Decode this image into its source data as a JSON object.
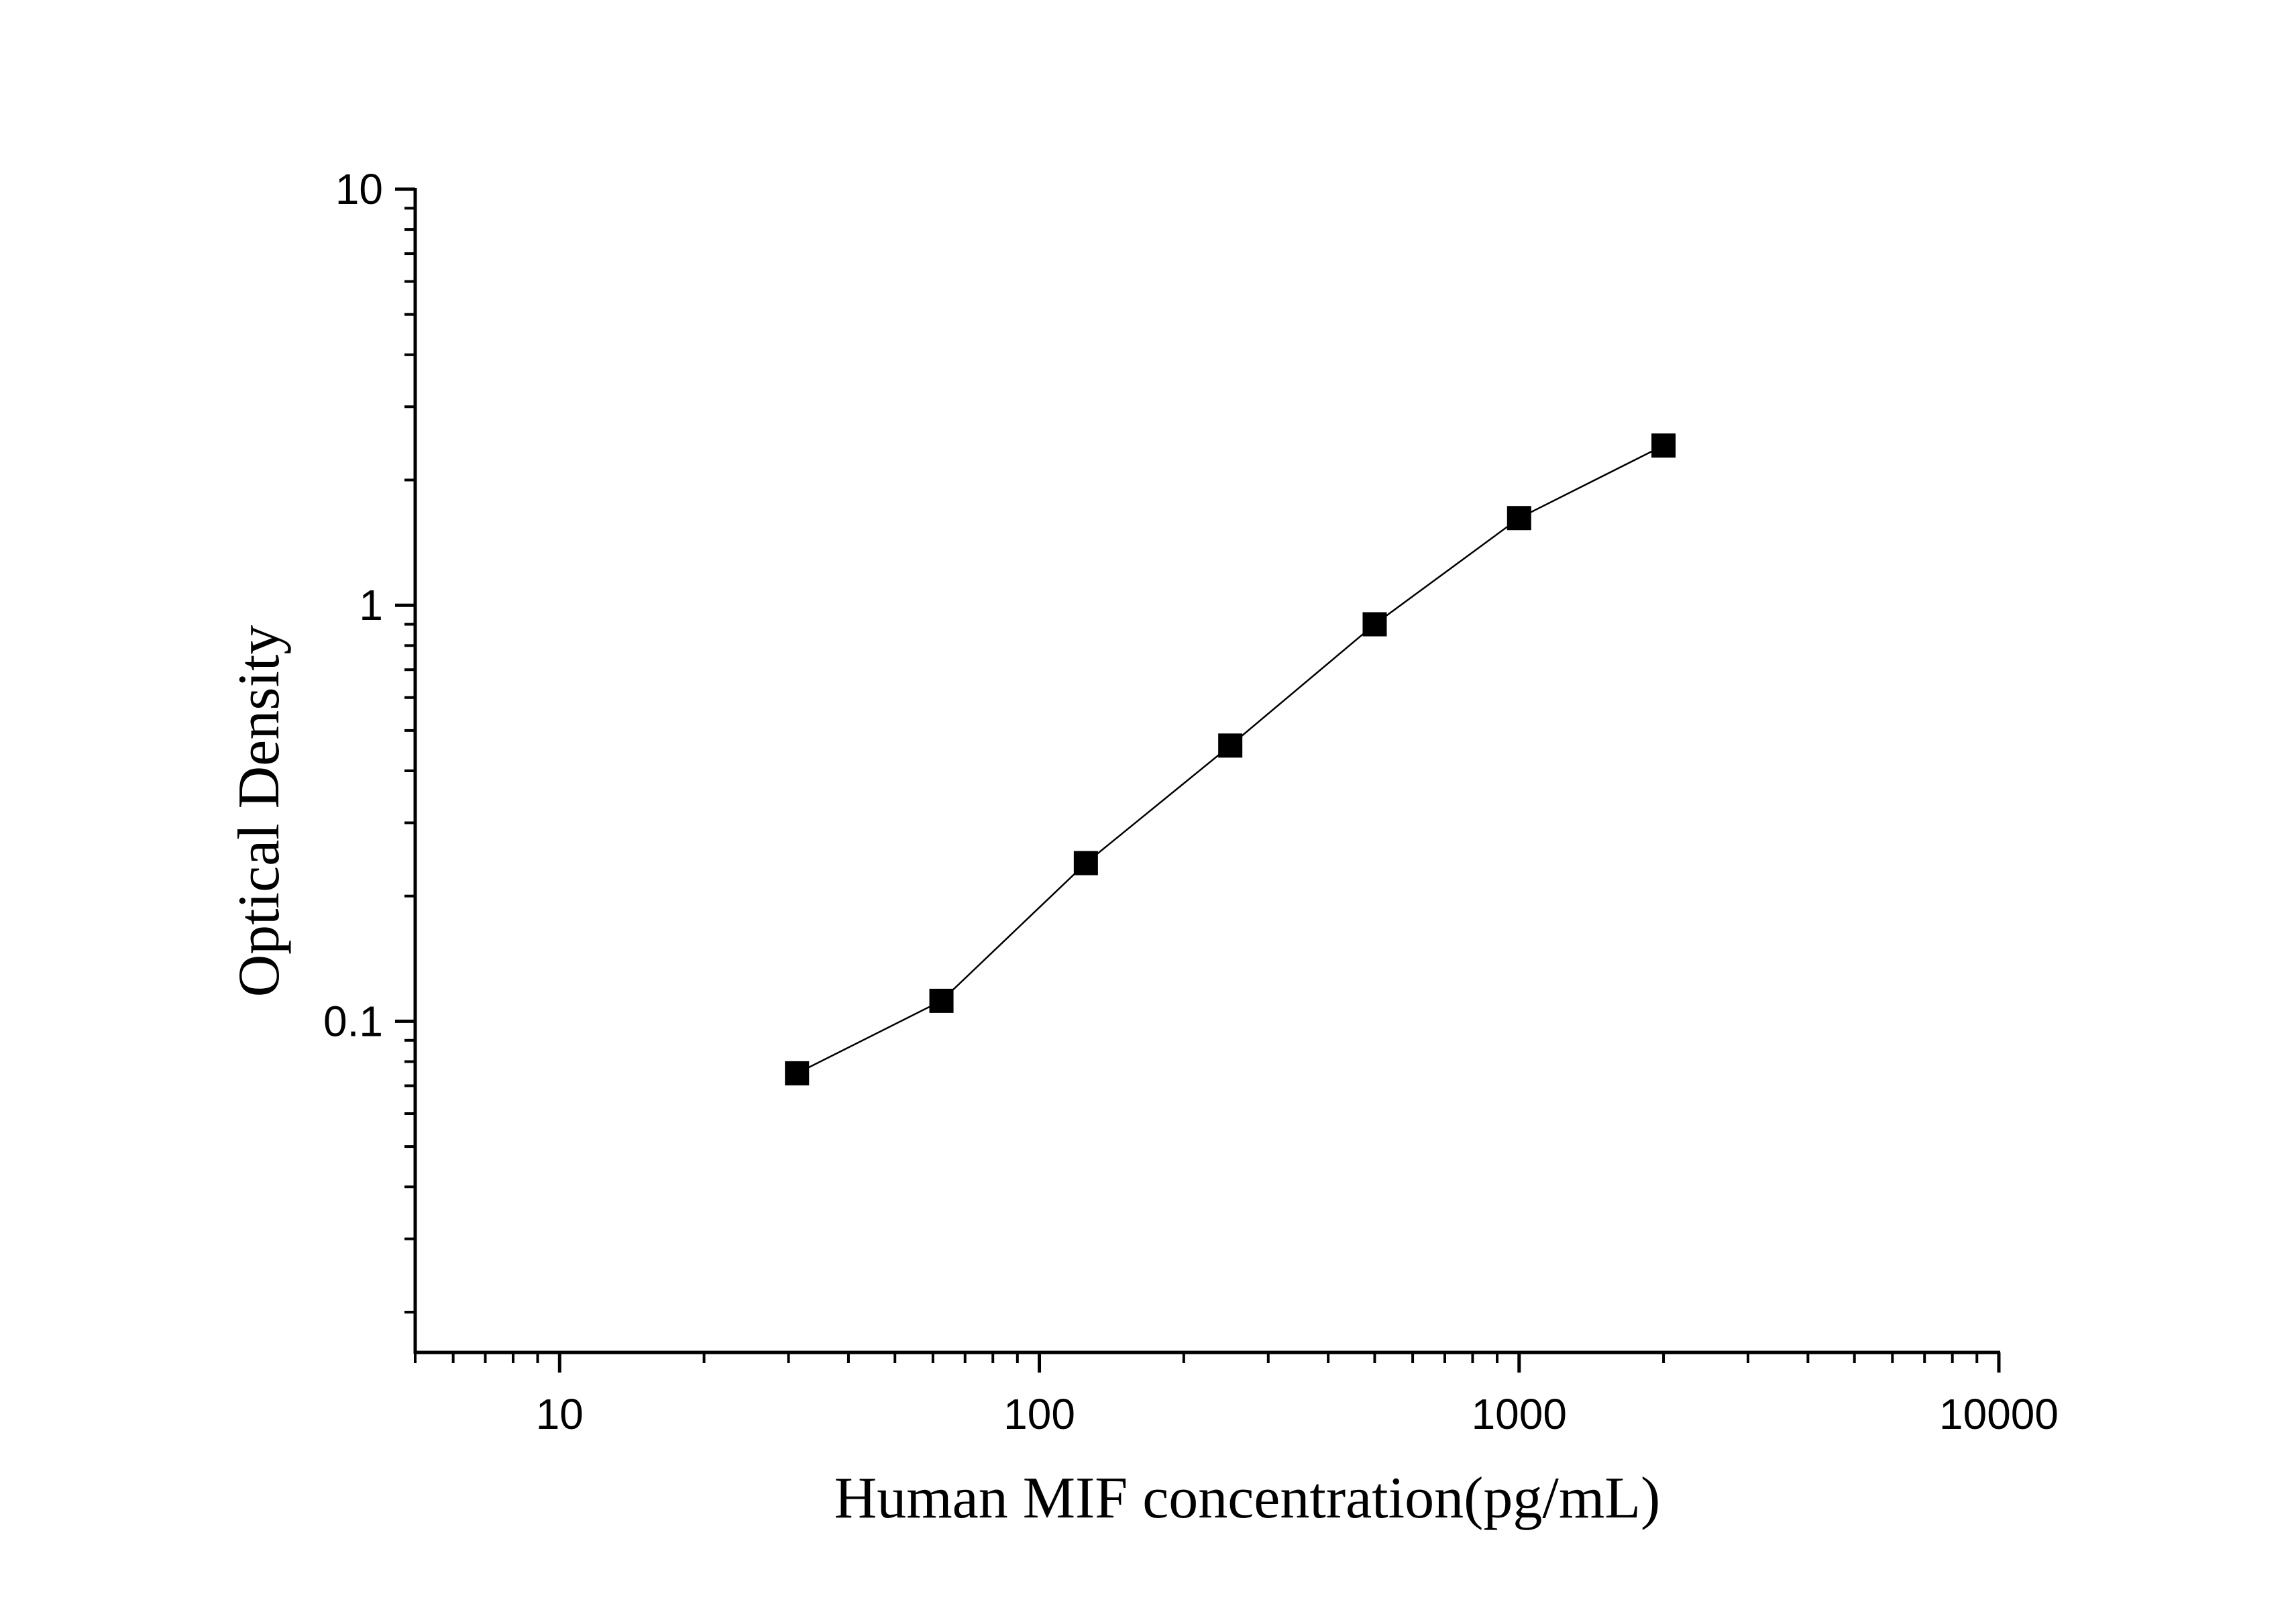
{
  "chart_data": {
    "type": "scatter",
    "title": "",
    "xlabel": "Human MIF concentration(pg/mL)",
    "ylabel": "Optical Density",
    "x_scale": "log",
    "y_scale": "log",
    "xlim": [
      5,
      10000
    ],
    "ylim": [
      0.016,
      10
    ],
    "x_ticks": [
      {
        "value": 10,
        "label": "10"
      },
      {
        "value": 100,
        "label": "100"
      },
      {
        "value": 1000,
        "label": "1000"
      },
      {
        "value": 10000,
        "label": "10000"
      }
    ],
    "y_ticks": [
      {
        "value": 0.1,
        "label": "0.1"
      },
      {
        "value": 1,
        "label": "1"
      },
      {
        "value": 10,
        "label": "10"
      }
    ],
    "grid": false,
    "legend": "none",
    "marker": "square",
    "connected": true,
    "color": "#000000",
    "series": [
      {
        "x": [
          31.25,
          62.5,
          125,
          250,
          500,
          1000,
          2000
        ],
        "y": [
          0.075,
          0.112,
          0.24,
          0.46,
          0.9,
          1.62,
          2.42
        ]
      }
    ]
  }
}
